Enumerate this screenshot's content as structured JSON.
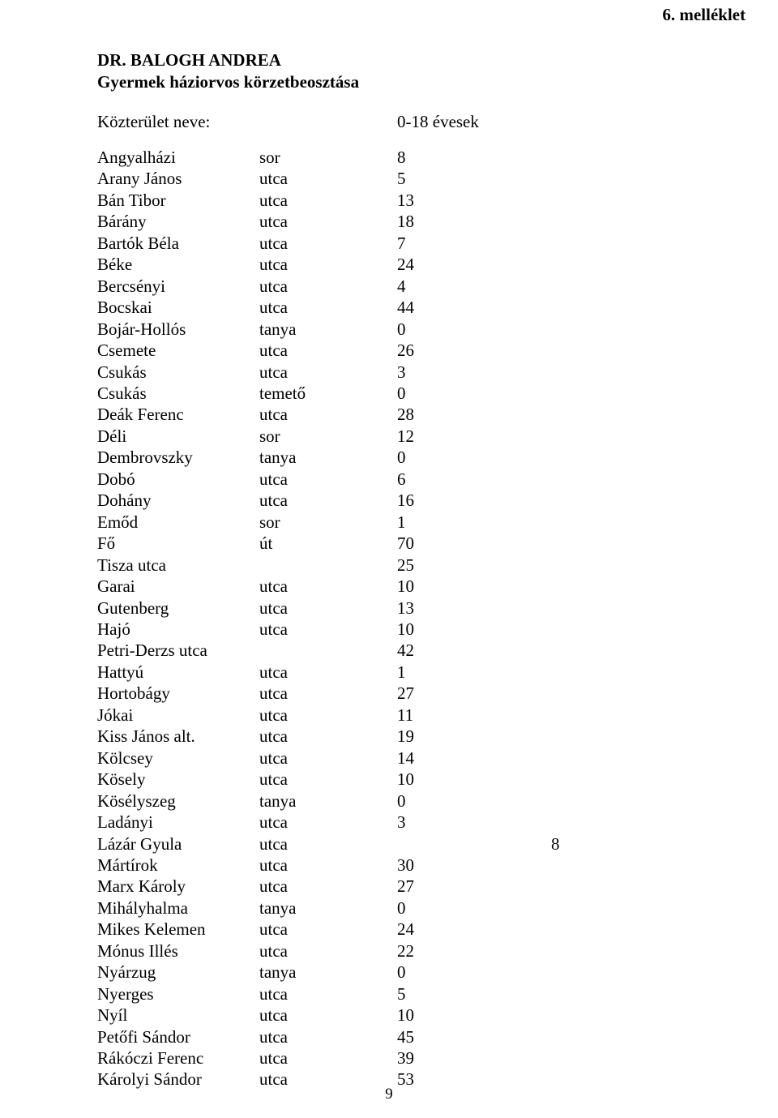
{
  "attachment_label": "6. melléklet",
  "doctor_name": "DR. BALOGH ANDREA",
  "subtitle": "Gyermek háziorvos körzetbeosztása",
  "header": {
    "left": "Közterület neve:",
    "right": "0-18 évesek"
  },
  "page_number": "9",
  "text_color": "#000000",
  "background_color": "#ffffff",
  "font": {
    "body_size_pt": 16,
    "bold_weight": 700
  },
  "rows": [
    {
      "name": "Angyalházi",
      "type": "sor",
      "value": "8"
    },
    {
      "name": "Arany János",
      "type": "utca",
      "value": "5"
    },
    {
      "name": "Bán Tibor",
      "type": "utca",
      "value": "13"
    },
    {
      "name": "Bárány",
      "type": "utca",
      "value": "18"
    },
    {
      "name": "Bartók Béla",
      "type": "utca",
      "value": "7"
    },
    {
      "name": "Béke",
      "type": "utca",
      "value": "24"
    },
    {
      "name": "Bercsényi",
      "type": "utca",
      "value": "4"
    },
    {
      "name": "Bocskai",
      "type": "utca",
      "value": "44"
    },
    {
      "name": "Bojár-Hollós",
      "type": "tanya",
      "value": "0"
    },
    {
      "name": "Csemete",
      "type": "utca",
      "value": "26"
    },
    {
      "name": "Csukás",
      "type": "utca",
      "value": "3"
    },
    {
      "name": "Csukás",
      "type": "temető",
      "value": "0"
    },
    {
      "name": "Deák Ferenc",
      "type": "utca",
      "value": "28"
    },
    {
      "name": "Déli",
      "type": "sor",
      "value": "12"
    },
    {
      "name": "Dembrovszky",
      "type": "tanya",
      "value": "0"
    },
    {
      "name": "Dobó",
      "type": "utca",
      "value": "6"
    },
    {
      "name": "Dohány",
      "type": "utca",
      "value": "16"
    },
    {
      "name": "Emőd",
      "type": "sor",
      "value": "1"
    },
    {
      "name": "Fő",
      "type": "út",
      "value": "70"
    },
    {
      "name": "Tisza utca",
      "type": "",
      "value": "25"
    },
    {
      "name": "Garai",
      "type": "utca",
      "value": "10"
    },
    {
      "name": "Gutenberg",
      "type": "utca",
      "value": "13"
    },
    {
      "name": "Hajó",
      "type": "utca",
      "value": "10"
    },
    {
      "name": "Petri-Derzs utca",
      "type": "",
      "value": "42"
    },
    {
      "name": "Hattyú",
      "type": "utca",
      "value": "1"
    },
    {
      "name": "Hortobágy",
      "type": "utca",
      "value": "27"
    },
    {
      "name": "Jókai",
      "type": "utca",
      "value": "11"
    },
    {
      "name": "Kiss János alt.",
      "type": "utca",
      "value": "19"
    },
    {
      "name": "Kölcsey",
      "type": "utca",
      "value": "14"
    },
    {
      "name": "Kösely",
      "type": "utca",
      "value": "10"
    },
    {
      "name": "Kösélyszeg",
      "type": "tanya",
      "value": "0"
    },
    {
      "name": "Ladányi",
      "type": "utca",
      "value": "3"
    },
    {
      "name": "Lázár Gyula",
      "type": "utca",
      "value": "8",
      "wide": true
    },
    {
      "name": "Mártírok",
      "type": "utca",
      "value": "30"
    },
    {
      "name": "Marx Károly",
      "type": "utca",
      "value": "27"
    },
    {
      "name": "Mihályhalma",
      "type": "tanya",
      "value": "0"
    },
    {
      "name": "Mikes Kelemen",
      "type": "utca",
      "value": "24"
    },
    {
      "name": "Mónus Illés",
      "type": "utca",
      "value": "22"
    },
    {
      "name": "Nyárzug",
      "type": "tanya",
      "value": "0"
    },
    {
      "name": "Nyerges",
      "type": "utca",
      "value": "5"
    },
    {
      "name": "Nyíl",
      "type": "utca",
      "value": "10"
    },
    {
      "name": "Petőfi Sándor",
      "type": "utca",
      "value": "45"
    },
    {
      "name": "Rákóczi Ferenc",
      "type": "utca",
      "value": "39"
    },
    {
      "name": "Károlyi Sándor",
      "type": "utca",
      "value": "53"
    }
  ]
}
